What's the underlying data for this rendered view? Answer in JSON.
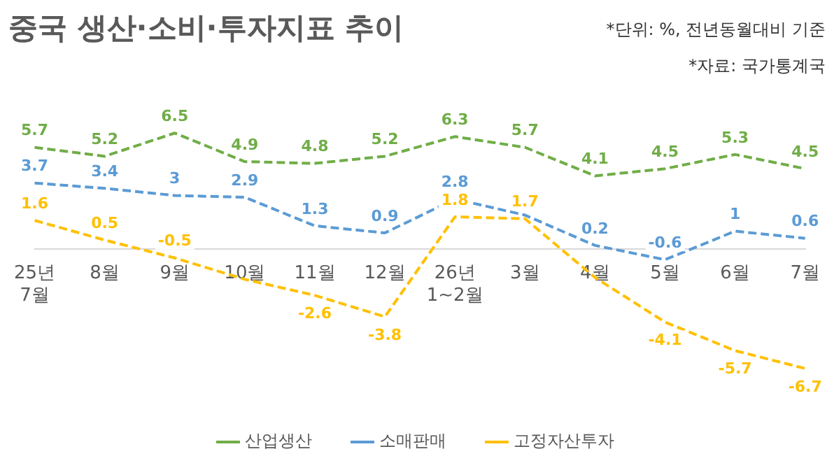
{
  "chart_data": {
    "type": "line",
    "title": "중국 생산·소비·투자지표 추이",
    "annotations": [
      "*단위: %, 전년동월대비 기준",
      "*자료: 국가통계국"
    ],
    "categories": [
      "25년\n7월",
      "8월",
      "9월",
      "10월",
      "11월",
      "12월",
      "26년\n1~2월",
      "3월",
      "4월",
      "5월",
      "6월",
      "7월"
    ],
    "series": [
      {
        "name": "산업생산",
        "color": "#70ad47",
        "values": [
          5.7,
          5.2,
          6.5,
          4.9,
          4.8,
          5.2,
          6.3,
          5.7,
          4.1,
          4.5,
          5.3,
          4.5
        ],
        "value_labels": [
          "5.7",
          "5.2",
          "6.5",
          "4.9",
          "4.8",
          "5.2",
          "6.3",
          "5.7",
          "4.1",
          "4.5",
          "5.3",
          "4.5"
        ]
      },
      {
        "name": "소매판매",
        "color": "#5b9bd5",
        "values": [
          3.7,
          3.4,
          3,
          2.9,
          1.3,
          0.9,
          2.8,
          1.9,
          0.2,
          -0.6,
          1,
          0.6
        ],
        "value_labels": [
          "3.7",
          "3.4",
          "3",
          "2.9",
          "1.3",
          "0.9",
          "2.8",
          null,
          "0.2",
          "-0.6",
          "1",
          "0.6"
        ]
      },
      {
        "name": "고정자산투자",
        "color": "#ffc000",
        "values": [
          1.6,
          0.5,
          -0.5,
          -1.7,
          -2.6,
          -3.8,
          1.8,
          1.7,
          -1.6,
          -4.1,
          -5.7,
          -6.7
        ],
        "value_labels": [
          "1.6",
          "0.5",
          "-0.5",
          null,
          "-2.6",
          "-3.8",
          "1.8",
          "1.7",
          null,
          "-4.1",
          "-5.7",
          "-6.7"
        ]
      }
    ],
    "line_style": "dashed",
    "marker": "none",
    "legend": "bottom",
    "grid": false
  }
}
